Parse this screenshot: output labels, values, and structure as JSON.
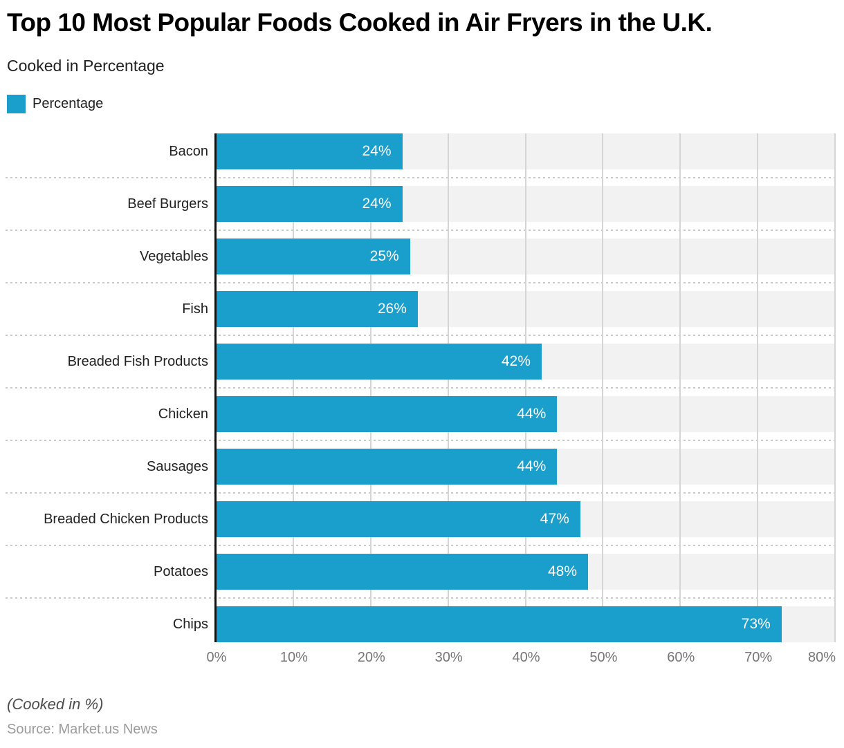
{
  "title": "Top 10 Most Popular Foods Cooked in Air Fryers in the U.K.",
  "subtitle": "Cooked in Percentage",
  "legend": {
    "label": "Percentage",
    "color": "#1a9fcc"
  },
  "chart_data": {
    "type": "bar",
    "orientation": "horizontal",
    "title": "Top 10 Most Popular Foods Cooked in Air Fryers in the U.K.",
    "subtitle": "Cooked in Percentage",
    "categories": [
      "Bacon",
      "Beef Burgers",
      "Vegetables",
      "Fish",
      "Breaded Fish Products",
      "Chicken",
      "Sausages",
      "Breaded Chicken Products",
      "Potatoes",
      "Chips"
    ],
    "values": [
      24,
      24,
      25,
      26,
      42,
      44,
      44,
      47,
      48,
      73
    ],
    "value_labels": [
      "24%",
      "24%",
      "25%",
      "26%",
      "42%",
      "44%",
      "44%",
      "47%",
      "48%",
      "73%"
    ],
    "series_name": "Percentage",
    "xlim": [
      0,
      80
    ],
    "x_ticks": [
      "0%",
      "10%",
      "20%",
      "30%",
      "40%",
      "50%",
      "60%",
      "70%",
      "80%"
    ],
    "grid": true,
    "legend_position": "top-left",
    "bar_color": "#1a9fcc",
    "track_color": "#f2f2f2",
    "grid_color": "#d5d5d5",
    "axis_line_color": "#111111",
    "value_label_color": "#ffffff",
    "tick_color": "#757575"
  },
  "footer": {
    "note": "(Cooked in %)",
    "source": "Source: Market.us News"
  }
}
